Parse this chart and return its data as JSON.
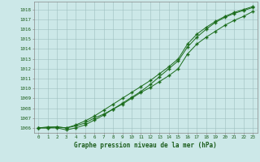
{
  "x": [
    0,
    1,
    2,
    3,
    4,
    5,
    6,
    7,
    8,
    9,
    10,
    11,
    12,
    13,
    14,
    15,
    16,
    17,
    18,
    19,
    20,
    21,
    22,
    23
  ],
  "line1": [
    1006.0,
    1006.1,
    1006.1,
    1006.0,
    1006.2,
    1006.5,
    1007.0,
    1007.4,
    1007.9,
    1008.4,
    1009.0,
    1009.6,
    1010.1,
    1010.7,
    1011.3,
    1012.0,
    1013.5,
    1014.5,
    1015.2,
    1015.8,
    1016.4,
    1016.9,
    1017.3,
    1017.8
  ],
  "line2": [
    1006.0,
    1006.0,
    1006.1,
    1006.0,
    1006.3,
    1006.7,
    1007.2,
    1007.8,
    1008.4,
    1009.0,
    1009.6,
    1010.2,
    1010.8,
    1011.5,
    1012.2,
    1013.0,
    1014.5,
    1015.5,
    1016.2,
    1016.8,
    1017.3,
    1017.7,
    1018.0,
    1018.3
  ],
  "line3": [
    1006.0,
    1006.0,
    1006.0,
    1005.8,
    1006.0,
    1006.3,
    1006.8,
    1007.3,
    1007.9,
    1008.5,
    1009.1,
    1009.7,
    1010.4,
    1011.2,
    1012.0,
    1012.8,
    1014.2,
    1015.2,
    1016.0,
    1016.7,
    1017.2,
    1017.6,
    1017.9,
    1018.2
  ],
  "x_ticks": [
    0,
    1,
    2,
    3,
    4,
    5,
    6,
    7,
    8,
    9,
    10,
    11,
    12,
    13,
    14,
    15,
    16,
    17,
    18,
    19,
    20,
    21,
    22,
    23
  ],
  "y_ticks": [
    1006,
    1007,
    1008,
    1009,
    1010,
    1011,
    1012,
    1013,
    1014,
    1015,
    1016,
    1017,
    1018
  ],
  "ylim": [
    1005.5,
    1018.8
  ],
  "xlim": [
    -0.5,
    23.5
  ],
  "line_color": "#1a6b1a",
  "marker": "+",
  "marker_size": 2.5,
  "linewidth": 0.7,
  "bg_color": "#cce8e8",
  "grid_color": "#9fbfbf",
  "title": "Graphe pression niveau de la mer (hPa)",
  "title_color": "#1a5c1a",
  "tick_color": "#1a5c1a",
  "axis_color": "#888888",
  "tick_fontsize": 4.2,
  "title_fontsize": 5.5
}
